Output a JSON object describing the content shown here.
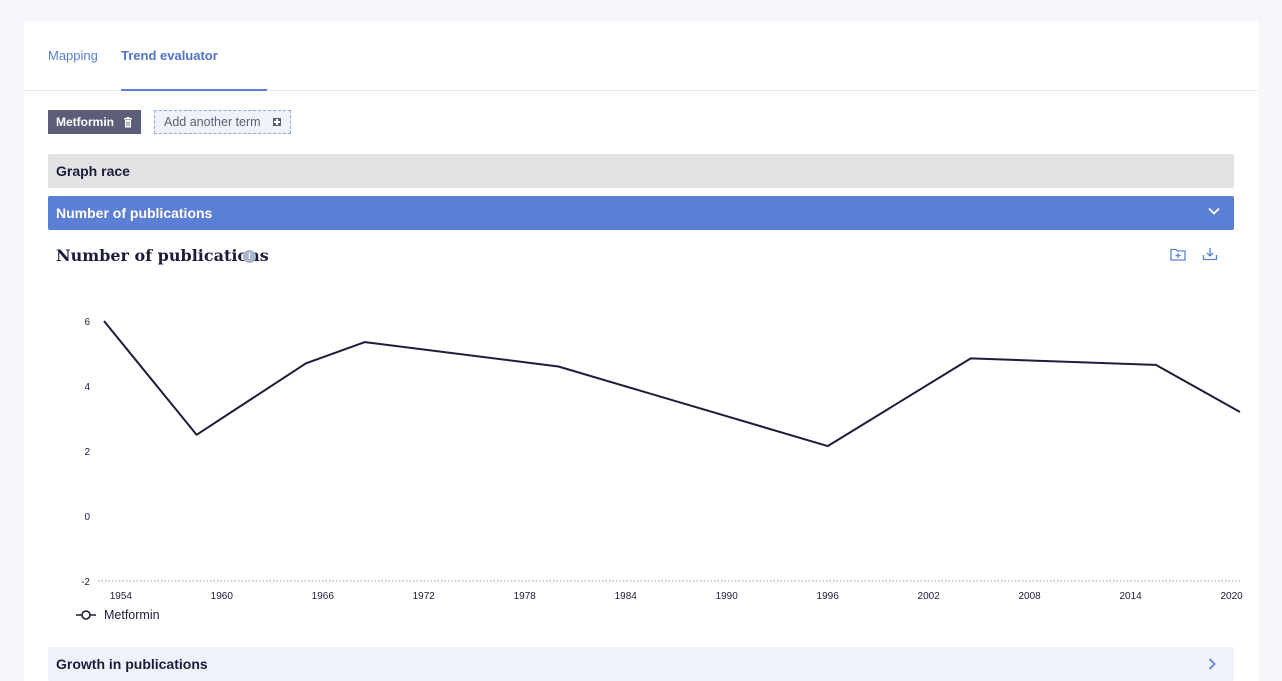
{
  "tabs": [
    {
      "label": "Mapping",
      "active": false
    },
    {
      "label": "Trend evaluator",
      "active": true
    }
  ],
  "terms": {
    "current": "Metformin",
    "add_label": "Add another term"
  },
  "sections": {
    "graph_race": "Graph race",
    "number_of_publications": "Number of publications",
    "growth_in_publications": "Growth in publications"
  },
  "chart_panel": {
    "title": "Number of publications",
    "icons": [
      "info-icon",
      "folder-add-icon",
      "download-icon"
    ]
  },
  "colors": {
    "accent": "#5b7fd5",
    "line": "#1c1d3a",
    "chip": "#5c5d78"
  },
  "chart_data": {
    "type": "line",
    "x": [
      1954,
      1960,
      1966,
      1972,
      1978,
      1984,
      1990,
      1996,
      2002,
      2008,
      2014,
      2020
    ],
    "x_ticks": [
      "1954",
      "1960",
      "1966",
      "1972",
      "1978",
      "1984",
      "1990",
      "1996",
      "2002",
      "2008",
      "2014",
      "2020"
    ],
    "y_ticks": [
      "6",
      "4",
      "2",
      "0",
      "-2"
    ],
    "ylim": [
      -2,
      6
    ],
    "xlim": [
      1953,
      2020.5
    ],
    "series": [
      {
        "name": "Metformin",
        "points": [
          [
            1953,
            6.0
          ],
          [
            1958.5,
            2.5
          ],
          [
            1965,
            4.7
          ],
          [
            1968.5,
            5.35
          ],
          [
            1980,
            4.6
          ],
          [
            1996,
            2.15
          ],
          [
            2004.5,
            4.85
          ],
          [
            2015.5,
            4.65
          ],
          [
            2020.5,
            3.2
          ]
        ]
      }
    ]
  }
}
